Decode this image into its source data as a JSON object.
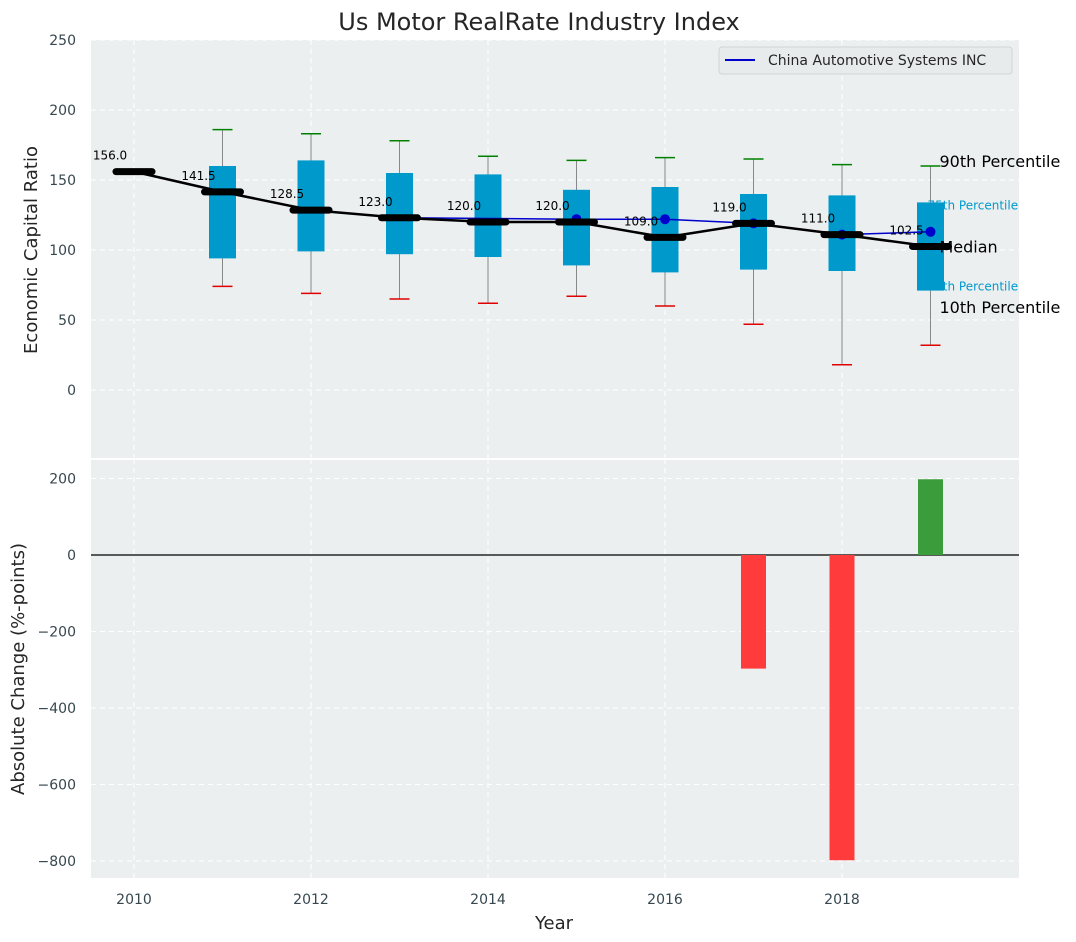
{
  "chart_data": [
    {
      "type": "box",
      "title": "Us Motor RealRate Industry Index",
      "ylabel": "Economic Capital Ratio",
      "ylim": [
        -50,
        250
      ],
      "yticks": [
        0,
        50,
        100,
        150,
        200,
        250
      ],
      "xlim": [
        2009.5,
        2020.0
      ],
      "grid": true,
      "legend": {
        "placement": "top-right",
        "entries": [
          "China Automotive Systems INC"
        ]
      },
      "boxes": [
        {
          "x": 2011,
          "p10": 74,
          "p25": 94,
          "p75": 160,
          "p90": 186
        },
        {
          "x": 2012,
          "p10": 69,
          "p25": 99,
          "p75": 164,
          "p90": 183
        },
        {
          "x": 2013,
          "p10": 65,
          "p25": 97,
          "p75": 155,
          "p90": 178
        },
        {
          "x": 2014,
          "p10": 62,
          "p25": 95,
          "p75": 154,
          "p90": 167
        },
        {
          "x": 2015,
          "p10": 67,
          "p25": 89,
          "p75": 143,
          "p90": 164
        },
        {
          "x": 2016,
          "p10": 60,
          "p25": 84,
          "p75": 145,
          "p90": 166
        },
        {
          "x": 2017,
          "p10": 47,
          "p25": 86,
          "p75": 140,
          "p90": 165
        },
        {
          "x": 2018,
          "p10": 18,
          "p25": 85,
          "p75": 139,
          "p90": 161
        },
        {
          "x": 2019,
          "p10": 32,
          "p25": 71,
          "p75": 134,
          "p90": 160
        }
      ],
      "median": {
        "x": [
          2010,
          2011,
          2012,
          2013,
          2014,
          2015,
          2016,
          2017,
          2018,
          2019
        ],
        "values": [
          156.0,
          141.5,
          128.5,
          123.0,
          120.0,
          120.0,
          109.0,
          119.0,
          111.0,
          102.5
        ],
        "labels": [
          "156.0",
          "141.5",
          "128.5",
          "123.0",
          "120.0",
          "120.0",
          "109.0",
          "119.0",
          "111.0",
          "102.5"
        ]
      },
      "series": [
        {
          "name": "China Automotive Systems INC",
          "x": [
            2013,
            2015,
            2016,
            2017,
            2018,
            2019
          ],
          "values": [
            123,
            122,
            122,
            119,
            111,
            113
          ],
          "marker_x": [
            2015,
            2016,
            2017,
            2018,
            2019
          ]
        }
      ],
      "annotations": {
        "p90": "90th Percentile",
        "p75": "75th Percentile",
        "median": "Median",
        "p25": "25th Percentile",
        "p10": "10th Percentile"
      },
      "colors": {
        "box": "#0099cc",
        "median": "#000000",
        "series": "#0000cc",
        "cap_top": "#008000",
        "cap_bottom": "#e00000",
        "background": "#eceff0"
      }
    },
    {
      "type": "bar",
      "xlabel": "Year",
      "ylabel": "Absolute Change (%-points)",
      "ylim": [
        -850,
        250
      ],
      "yticks": [
        -800,
        -600,
        -400,
        -200,
        0,
        200
      ],
      "xticks": [
        2010,
        2012,
        2014,
        2016,
        2018
      ],
      "xtick_labels": [
        "2010",
        "2012",
        "2014",
        "2016",
        "2018"
      ],
      "grid": true,
      "x": [
        2017,
        2018,
        2019
      ],
      "values": [
        -297,
        -798,
        198
      ],
      "colors": {
        "negative": "#ff3b3b",
        "positive": "#3a9c3a",
        "background": "#eceff0"
      }
    }
  ]
}
